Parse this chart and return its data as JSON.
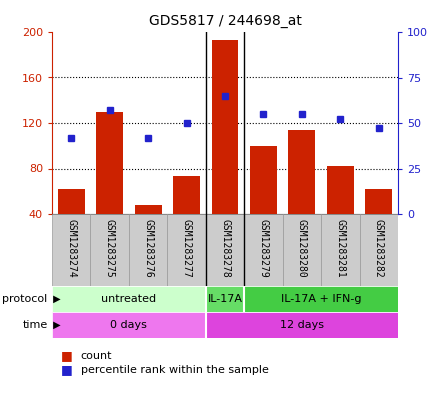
{
  "title": "GDS5817 / 244698_at",
  "samples": [
    "GSM1283274",
    "GSM1283275",
    "GSM1283276",
    "GSM1283277",
    "GSM1283278",
    "GSM1283279",
    "GSM1283280",
    "GSM1283281",
    "GSM1283282"
  ],
  "counts": [
    62,
    130,
    48,
    73,
    193,
    100,
    114,
    82,
    62
  ],
  "percentile_ranks": [
    42,
    57,
    42,
    50,
    65,
    55,
    55,
    52,
    47
  ],
  "ylim_left": [
    40,
    200
  ],
  "ylim_right": [
    0,
    100
  ],
  "yticks_left": [
    40,
    80,
    120,
    160,
    200
  ],
  "yticks_right": [
    0,
    25,
    50,
    75,
    100
  ],
  "bar_color": "#cc2200",
  "marker_color": "#2222cc",
  "protocol_groups": [
    {
      "label": "untreated",
      "start": 0,
      "end": 4,
      "color": "#ccffcc"
    },
    {
      "label": "IL-17A",
      "start": 4,
      "end": 5,
      "color": "#66dd66"
    },
    {
      "label": "IL-17A + IFN-g",
      "start": 5,
      "end": 9,
      "color": "#44cc44"
    }
  ],
  "time_groups": [
    {
      "label": "0 days",
      "start": 0,
      "end": 4,
      "color": "#ee77ee"
    },
    {
      "label": "12 days",
      "start": 4,
      "end": 9,
      "color": "#dd44dd"
    }
  ],
  "protocol_label": "protocol",
  "time_label": "time",
  "legend_count_label": "count",
  "legend_percentile_label": "percentile rank within the sample",
  "bar_color_legend": "#cc2200",
  "marker_color_legend": "#2222cc",
  "sample_box_color": "#cccccc",
  "sample_box_edge": "#999999",
  "grid_linestyle": ":",
  "grid_color": "black",
  "grid_linewidth": 0.8,
  "tick_color_left": "#cc2200",
  "tick_color_right": "#2222cc",
  "bar_width": 0.7,
  "marker_size": 5,
  "group_sep_color": "black",
  "group_sep_linewidth": 1.0,
  "group_separators": [
    3.5,
    4.5
  ],
  "fig_bg": "white"
}
